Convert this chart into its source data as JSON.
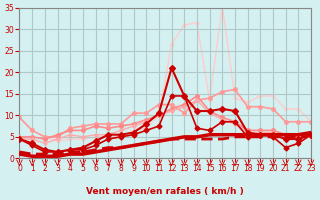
{
  "background_color": "#d4f0f0",
  "grid_color": "#b0c8c8",
  "xlabel": "Vent moyen/en rafales ( km/h )",
  "xlim": [
    0,
    23
  ],
  "ylim": [
    0,
    35
  ],
  "yticks": [
    0,
    5,
    10,
    15,
    20,
    25,
    30,
    35
  ],
  "xticks": [
    0,
    1,
    2,
    3,
    4,
    5,
    6,
    7,
    8,
    9,
    10,
    11,
    12,
    13,
    14,
    15,
    16,
    17,
    18,
    19,
    20,
    21,
    22,
    23
  ],
  "series": [
    {
      "x": [
        0,
        1,
        2,
        3,
        4,
        5,
        6,
        7,
        8,
        9,
        10,
        11,
        12,
        13,
        14,
        15,
        16,
        17,
        18,
        19,
        20,
        21,
        22,
        23
      ],
      "y": [
        9.5,
        6.5,
        5.0,
        4.0,
        4.5,
        4.5,
        5.0,
        5.0,
        5.0,
        6.5,
        7.0,
        10.0,
        26.5,
        31.0,
        31.5,
        13.5,
        35.5,
        14.0,
        13.0,
        14.5,
        14.5,
        11.5,
        11.5,
        8.5
      ],
      "color": "#ffcccc",
      "linewidth": 1.0,
      "marker": "o",
      "markersize": 2.0,
      "zorder": 1,
      "dashes": null
    },
    {
      "x": [
        0,
        1,
        2,
        3,
        4,
        5,
        6,
        7,
        8,
        9,
        10,
        11,
        12,
        13,
        14,
        15,
        16,
        17,
        18,
        19,
        20,
        21,
        22,
        23
      ],
      "y": [
        9.5,
        6.5,
        5.0,
        5.0,
        7.0,
        7.5,
        8.0,
        8.0,
        8.0,
        10.5,
        10.5,
        12.5,
        12.5,
        10.5,
        13.5,
        14.0,
        15.5,
        16.0,
        12.0,
        12.0,
        11.5,
        8.5,
        8.5,
        8.5
      ],
      "color": "#ff9999",
      "linewidth": 1.2,
      "marker": "o",
      "markersize": 2.5,
      "zorder": 2,
      "dashes": null
    },
    {
      "x": [
        0,
        1,
        2,
        3,
        4,
        5,
        6,
        7,
        8,
        9,
        10,
        11,
        12,
        13,
        14,
        15,
        16,
        17,
        18,
        19,
        20,
        21,
        22,
        23
      ],
      "y": [
        5.0,
        5.0,
        4.5,
        5.5,
        6.5,
        6.5,
        7.5,
        7.0,
        7.5,
        8.0,
        9.0,
        10.0,
        11.5,
        12.5,
        14.5,
        11.0,
        9.5,
        8.5,
        6.5,
        6.5,
        6.5,
        5.5,
        5.0,
        5.5
      ],
      "color": "#ff8888",
      "linewidth": 1.2,
      "marker": "o",
      "markersize": 2.5,
      "zorder": 3,
      "dashes": null
    },
    {
      "x": [
        0,
        1,
        2,
        3,
        4,
        5,
        6,
        7,
        8,
        9,
        10,
        11,
        12,
        13,
        14,
        15,
        16,
        17,
        18,
        19,
        20,
        21,
        22,
        23
      ],
      "y": [
        4.5,
        4.5,
        3.5,
        4.5,
        5.5,
        5.0,
        5.5,
        5.5,
        6.5,
        7.5,
        8.5,
        10.0,
        11.0,
        12.0,
        13.5,
        10.5,
        9.0,
        8.0,
        6.0,
        6.0,
        6.0,
        5.0,
        4.5,
        5.0
      ],
      "color": "#ffaaaa",
      "linewidth": 1.0,
      "marker": "o",
      "markersize": 2.0,
      "zorder": 4,
      "dashes": null
    },
    {
      "x": [
        0,
        1,
        2,
        3,
        4,
        5,
        6,
        7,
        8,
        9,
        10,
        11,
        12,
        13,
        14,
        15,
        16,
        17,
        18,
        19,
        20,
        21,
        22,
        23
      ],
      "y": [
        4.5,
        3.0,
        1.5,
        1.5,
        2.0,
        2.0,
        3.0,
        4.5,
        5.0,
        5.5,
        6.5,
        7.5,
        14.5,
        14.5,
        7.0,
        6.5,
        8.5,
        8.5,
        5.0,
        5.5,
        5.0,
        2.5,
        3.5,
        5.5
      ],
      "color": "#cc0000",
      "linewidth": 1.2,
      "marker": "D",
      "markersize": 2.5,
      "zorder": 5,
      "dashes": null
    },
    {
      "x": [
        0,
        1,
        2,
        3,
        4,
        5,
        6,
        7,
        8,
        9,
        10,
        11,
        12,
        13,
        14,
        15,
        16,
        17,
        18,
        19,
        20,
        21,
        22,
        23
      ],
      "y": [
        4.5,
        3.5,
        2.0,
        1.5,
        2.0,
        2.5,
        4.0,
        5.5,
        5.5,
        6.0,
        8.0,
        10.5,
        21.0,
        14.5,
        11.0,
        11.0,
        11.5,
        11.0,
        6.0,
        5.5,
        5.5,
        4.5,
        4.5,
        5.5
      ],
      "color": "#cc0000",
      "linewidth": 1.5,
      "marker": "D",
      "markersize": 3.0,
      "zorder": 6,
      "dashes": null
    },
    {
      "x": [
        0,
        1,
        2,
        3,
        4,
        5,
        6,
        7,
        8,
        9,
        10,
        11,
        12,
        13,
        14,
        15,
        16,
        17,
        18,
        19,
        20,
        21,
        22,
        23
      ],
      "y": [
        1.5,
        1.0,
        1.0,
        1.0,
        1.5,
        1.5,
        2.0,
        2.5,
        2.5,
        3.0,
        3.5,
        4.0,
        4.5,
        4.5,
        4.5,
        4.5,
        4.5,
        5.0,
        5.0,
        5.0,
        5.0,
        5.0,
        5.0,
        5.5
      ],
      "color": "#cc0000",
      "linewidth": 2.0,
      "marker": null,
      "markersize": 0,
      "zorder": 7,
      "dashes": [
        4,
        2
      ]
    },
    {
      "x": [
        0,
        1,
        2,
        3,
        4,
        5,
        6,
        7,
        8,
        9,
        10,
        11,
        12,
        13,
        14,
        15,
        16,
        17,
        18,
        19,
        20,
        21,
        22,
        23
      ],
      "y": [
        1.0,
        0.5,
        0.5,
        0.5,
        1.0,
        1.0,
        1.5,
        2.0,
        2.5,
        3.0,
        3.5,
        4.0,
        4.5,
        5.0,
        5.0,
        5.5,
        5.5,
        5.5,
        5.5,
        5.5,
        5.5,
        5.5,
        5.5,
        6.0
      ],
      "color": "#cc0000",
      "linewidth": 2.5,
      "marker": null,
      "markersize": 0,
      "zorder": 8,
      "dashes": null
    }
  ],
  "arrow_color": "#cc0000",
  "tick_color": "#cc0000",
  "label_color": "#cc0000",
  "axis_color": "#888888"
}
